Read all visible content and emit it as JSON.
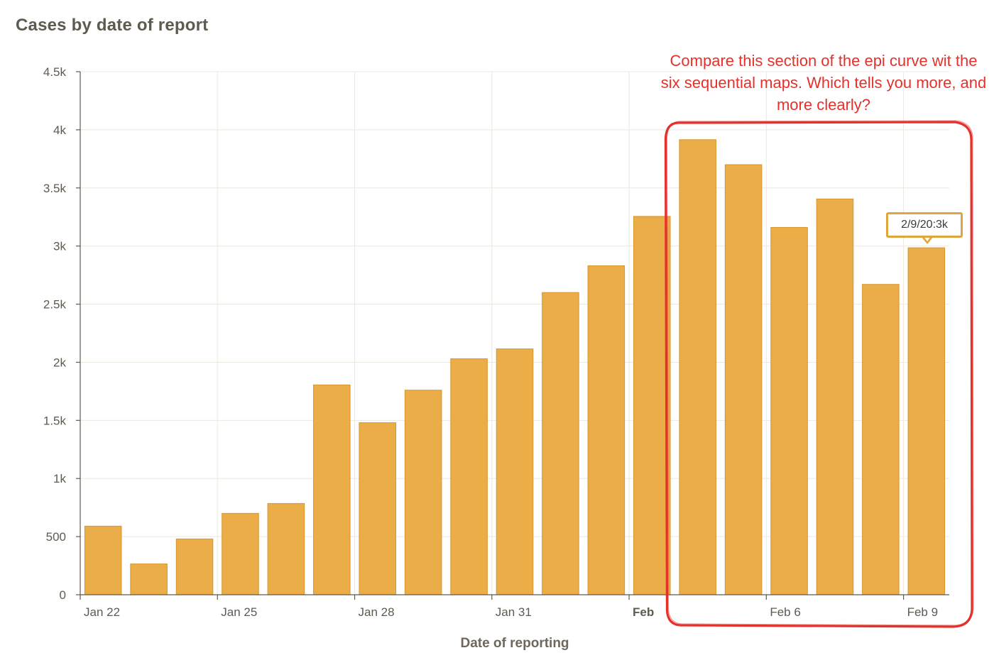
{
  "chart_data": {
    "type": "bar",
    "title": "Cases by date of report",
    "xlabel": "Date of reporting",
    "ylabel": "",
    "ylim": [
      0,
      4500
    ],
    "y_ticks": [
      0,
      500,
      1000,
      1500,
      2000,
      2500,
      3000,
      3500,
      4000,
      4500
    ],
    "y_tick_labels": [
      "0",
      "500",
      "1k",
      "1.5k",
      "2k",
      "2.5k",
      "3k",
      "3.5k",
      "4k",
      "4.5k"
    ],
    "categories": [
      "Jan 22",
      "Jan 23",
      "Jan 24",
      "Jan 25",
      "Jan 26",
      "Jan 27",
      "Jan 28",
      "Jan 29",
      "Jan 30",
      "Jan 31",
      "Feb 1",
      "Feb 2",
      "Feb 3",
      "Feb 4",
      "Feb 5",
      "Feb 6",
      "Feb 7",
      "Feb 8",
      "Feb 9"
    ],
    "values": [
      590,
      265,
      480,
      700,
      785,
      1805,
      1480,
      1760,
      2030,
      2115,
      2600,
      2830,
      3255,
      3915,
      3700,
      3160,
      3405,
      2670,
      2985
    ],
    "x_tick_labels": [
      {
        "label": "Jan 22",
        "index": 0,
        "bold": false
      },
      {
        "label": "Jan 25",
        "index": 3,
        "bold": false
      },
      {
        "label": "Jan 28",
        "index": 6,
        "bold": false
      },
      {
        "label": "Jan 31",
        "index": 9,
        "bold": false
      },
      {
        "label": "Feb",
        "index": 12,
        "bold": true
      },
      {
        "label": "Feb 6",
        "index": 15,
        "bold": false
      },
      {
        "label": "Feb 9",
        "index": 18,
        "bold": false
      }
    ],
    "grid": true,
    "bar_color": "#ebad47",
    "tooltip": {
      "text": "2/9/20:3k",
      "index": 18
    },
    "annotation": {
      "text": "Compare this section of the epi curve wit the six sequential maps. Which tells you more, and more clearly?",
      "highlight_from_index": 13,
      "highlight_to_index": 18,
      "color": "#e4312b"
    }
  }
}
